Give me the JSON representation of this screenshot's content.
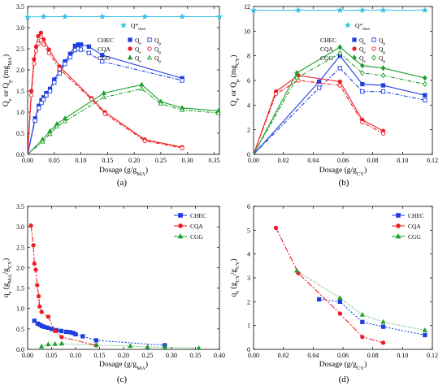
{
  "figure": {
    "panels": [
      "(a)",
      "(b)",
      "(c)",
      "(d)"
    ]
  },
  "chart_data": [
    {
      "id": "a",
      "type": "line",
      "caption": "(a)",
      "xlabel": "Dosage (g/g",
      "xlabel_sub": "MA",
      "xlabel_end": ")",
      "ylabel": "Q",
      "ylabel_parts": [
        "Q",
        "e",
        " or Q",
        "p",
        " (mg",
        "MA",
        ")"
      ],
      "xlim": [
        0,
        0.36
      ],
      "ylim": [
        0,
        3.5
      ],
      "xticks": [
        0,
        0.05,
        0.1,
        0.15,
        0.2,
        0.25,
        0.3,
        0.35
      ],
      "xtick_labels": [
        "0.00",
        "0.05",
        "0.10",
        "0.15",
        "0.20",
        "0.25",
        "0.30",
        "0.35"
      ],
      "yticks": [
        0,
        0.5,
        1.0,
        1.5,
        2.0,
        2.5,
        3.0,
        3.5
      ],
      "ytick_labels": [
        "0.0",
        "0.5",
        "1.0",
        "1.5",
        "2.0",
        "2.5",
        "3.0",
        "3.5"
      ],
      "qmax_label": "Q*",
      "qmax_sub": "max",
      "qmax": {
        "color": "#35c2e6",
        "x": [
          0,
          0.03,
          0.07,
          0.14,
          0.22,
          0.29,
          0.36
        ],
        "y": [
          3.25,
          3.26,
          3.26,
          3.26,
          3.26,
          3.26,
          3.26
        ]
      },
      "legend": [
        {
          "group": "CHEC",
          "qe": "Q",
          "qe_sub": "e",
          "qp": "Q",
          "qp_sub": "p",
          "color": "#1f3ee0",
          "marker": "square"
        },
        {
          "group": "CQA",
          "qe": "Q",
          "qe_sub": "e",
          "qp": "Q",
          "qp_sub": "p",
          "color": "#ee1c24",
          "marker": "circle"
        },
        {
          "group": "CGG",
          "qe": "Q",
          "qe_sub": "e",
          "qp": "Q",
          "qp_sub": "p",
          "color": "#1d9e2b",
          "marker": "triangle"
        }
      ],
      "series": [
        {
          "name": "CHEC",
          "kind": "Qe",
          "color": "#1f3ee0",
          "marker": "square",
          "filled": true,
          "x": [
            0,
            0.014,
            0.021,
            0.026,
            0.03,
            0.035,
            0.042,
            0.05,
            0.06,
            0.07,
            0.08,
            0.089,
            0.095,
            0.1,
            0.115,
            0.14,
            0.29
          ],
          "y": [
            0,
            0.85,
            1.15,
            1.28,
            1.35,
            1.45,
            1.55,
            1.77,
            1.98,
            2.2,
            2.38,
            2.57,
            2.6,
            2.6,
            2.55,
            2.35,
            1.8
          ]
        },
        {
          "name": "CHEC",
          "kind": "Qp",
          "color": "#1f3ee0",
          "marker": "square",
          "filled": false,
          "x": [
            0,
            0.014,
            0.021,
            0.026,
            0.03,
            0.035,
            0.042,
            0.05,
            0.06,
            0.07,
            0.08,
            0.089,
            0.095,
            0.1,
            0.115,
            0.14,
            0.29
          ],
          "y": [
            0,
            0.8,
            1.1,
            1.22,
            1.3,
            1.4,
            1.5,
            1.7,
            1.92,
            2.14,
            2.3,
            2.47,
            2.5,
            2.48,
            2.4,
            2.2,
            1.75
          ]
        },
        {
          "name": "CQA",
          "kind": "Qe",
          "color": "#ee1c24",
          "marker": "circle",
          "filled": true,
          "x": [
            0,
            0.007,
            0.012,
            0.016,
            0.02,
            0.025,
            0.03,
            0.04,
            0.06,
            0.12,
            0.145,
            0.22,
            0.29
          ],
          "y": [
            0,
            1.5,
            2.25,
            2.55,
            2.8,
            2.88,
            2.72,
            2.48,
            2.08,
            1.33,
            1.0,
            0.35,
            0.17
          ]
        },
        {
          "name": "CQA",
          "kind": "Qp",
          "color": "#ee1c24",
          "marker": "circle",
          "filled": false,
          "x": [
            0,
            0.007,
            0.012,
            0.016,
            0.02,
            0.025,
            0.03,
            0.04,
            0.06,
            0.12,
            0.145,
            0.22,
            0.29
          ],
          "y": [
            0,
            1.4,
            2.15,
            2.45,
            2.62,
            2.7,
            2.6,
            2.4,
            2.02,
            1.3,
            0.96,
            0.32,
            0.15
          ]
        },
        {
          "name": "CGG",
          "kind": "Qe",
          "color": "#1d9e2b",
          "marker": "triangle",
          "filled": true,
          "x": [
            0,
            0.028,
            0.042,
            0.055,
            0.07,
            0.143,
            0.214,
            0.25,
            0.29,
            0.358
          ],
          "y": [
            0,
            0.35,
            0.55,
            0.72,
            0.85,
            1.45,
            1.65,
            1.25,
            1.1,
            1.03
          ]
        },
        {
          "name": "CGG",
          "kind": "Qp",
          "color": "#1d9e2b",
          "marker": "triangle",
          "filled": false,
          "x": [
            0,
            0.028,
            0.042,
            0.055,
            0.07,
            0.143,
            0.214,
            0.25,
            0.29,
            0.358
          ],
          "y": [
            0,
            0.3,
            0.48,
            0.66,
            0.78,
            1.35,
            1.55,
            1.2,
            1.05,
            0.98
          ]
        }
      ]
    },
    {
      "id": "b",
      "type": "line",
      "caption": "(b)",
      "xlabel": "Dosage (g/g",
      "xlabel_sub": "CY",
      "xlabel_end": ")",
      "ylabel_parts": [
        "Q",
        "e",
        " or Q",
        "p",
        " (mg",
        "CY",
        ")"
      ],
      "xlim": [
        0,
        0.12
      ],
      "ylim": [
        0,
        12
      ],
      "xticks": [
        0,
        0.02,
        0.04,
        0.06,
        0.08,
        0.1,
        0.12
      ],
      "xtick_labels": [
        "0.00",
        "0.02",
        "0.04",
        "0.06",
        "0.08",
        "0.10",
        "0.12"
      ],
      "yticks": [
        0,
        2,
        4,
        6,
        8,
        10,
        12
      ],
      "ytick_labels": [
        "0",
        "2",
        "4",
        "6",
        "8",
        "10",
        "12"
      ],
      "qmax_label": "Q*",
      "qmax_sub": "max",
      "qmax": {
        "color": "#35c2e6",
        "x": [
          0,
          0.03,
          0.058,
          0.073,
          0.087,
          0.115
        ],
        "y": [
          11.7,
          11.7,
          11.7,
          11.7,
          11.7,
          11.7
        ]
      },
      "legend": [
        {
          "group": "CHEC",
          "qe": "Q",
          "qe_sub": "e",
          "qp": "Q",
          "qp_sub": "p",
          "color": "#1f3ee0",
          "marker": "square"
        },
        {
          "group": "CQA",
          "qe": "Q",
          "qe_sub": "e",
          "qp": "Q",
          "qp_sub": "p",
          "color": "#ee1c24",
          "marker": "circle"
        },
        {
          "group": "CGG",
          "qe": "Q",
          "qe_sub": "e",
          "qp": "Q",
          "qp_sub": "p",
          "color": "#1d9e2b",
          "marker": "diamond"
        }
      ],
      "series": [
        {
          "name": "CHEC",
          "kind": "Qe",
          "color": "#1f3ee0",
          "marker": "square",
          "filled": true,
          "x": [
            0,
            0.044,
            0.058,
            0.073,
            0.087,
            0.115
          ],
          "y": [
            0,
            5.9,
            8.0,
            5.7,
            5.6,
            4.8
          ]
        },
        {
          "name": "CHEC",
          "kind": "Qp",
          "color": "#1f3ee0",
          "marker": "square",
          "filled": false,
          "x": [
            0,
            0.044,
            0.058,
            0.073,
            0.087,
            0.115
          ],
          "y": [
            0,
            5.4,
            7.0,
            5.1,
            5.1,
            4.4
          ]
        },
        {
          "name": "CQA",
          "kind": "Qe",
          "color": "#ee1c24",
          "marker": "circle",
          "filled": true,
          "x": [
            0,
            0.015,
            0.03,
            0.058,
            0.073,
            0.087
          ],
          "y": [
            0,
            5.1,
            6.4,
            5.9,
            2.8,
            1.9
          ]
        },
        {
          "name": "CQA",
          "kind": "Qp",
          "color": "#ee1c24",
          "marker": "circle",
          "filled": false,
          "x": [
            0,
            0.015,
            0.03,
            0.058,
            0.073,
            0.087
          ],
          "y": [
            0,
            4.9,
            6.0,
            5.6,
            2.6,
            1.7
          ]
        },
        {
          "name": "CGG",
          "kind": "Qe",
          "color": "#1d9e2b",
          "marker": "diamond",
          "filled": true,
          "x": [
            0,
            0.029,
            0.058,
            0.073,
            0.087,
            0.115
          ],
          "y": [
            0,
            6.6,
            8.7,
            7.2,
            7.0,
            6.2
          ]
        },
        {
          "name": "CGG",
          "kind": "Qp",
          "color": "#1d9e2b",
          "marker": "diamond",
          "filled": false,
          "x": [
            0,
            0.029,
            0.058,
            0.073,
            0.087,
            0.115
          ],
          "y": [
            0,
            6.2,
            8.2,
            6.6,
            6.4,
            5.7
          ]
        }
      ]
    },
    {
      "id": "c",
      "type": "scatter",
      "caption": "(c)",
      "xlabel": "Dosage (g/g",
      "xlabel_sub": "MA",
      "xlabel_end": ")",
      "ylabel_parts": [
        "q",
        "e",
        " (g",
        "MA",
        "/g",
        "CY",
        ")"
      ],
      "xlim": [
        0,
        0.4
      ],
      "ylim": [
        0,
        3.5
      ],
      "xticks": [
        0,
        0.05,
        0.1,
        0.15,
        0.2,
        0.25,
        0.3,
        0.35,
        0.4
      ],
      "xtick_labels": [
        "0.00",
        "0.05",
        "0.10",
        "0.15",
        "0.20",
        "0.25",
        "0.30",
        "0.35",
        "0.40"
      ],
      "yticks": [
        0,
        0.5,
        1.0,
        1.5,
        2.0,
        2.5,
        3.0,
        3.5
      ],
      "ytick_labels": [
        "0.0",
        "0.5",
        "1.0",
        "1.5",
        "2.0",
        "2.5",
        "3.0",
        "3.5"
      ],
      "legend": [
        {
          "group": "CHEC",
          "color": "#1f3ee0",
          "marker": "square"
        },
        {
          "group": "CQA",
          "color": "#ee1c24",
          "marker": "circle"
        },
        {
          "group": "CGG",
          "color": "#1d9e2b",
          "marker": "triangle"
        }
      ],
      "series": [
        {
          "name": "CHEC",
          "color": "#1f3ee0",
          "marker": "square",
          "dash": "2,2",
          "x": [
            0.014,
            0.021,
            0.026,
            0.03,
            0.035,
            0.042,
            0.05,
            0.06,
            0.07,
            0.08,
            0.089,
            0.095,
            0.1,
            0.115,
            0.143,
            0.286
          ],
          "y": [
            0.7,
            0.63,
            0.6,
            0.57,
            0.55,
            0.53,
            0.5,
            0.47,
            0.45,
            0.43,
            0.42,
            0.4,
            0.37,
            0.32,
            0.22,
            0.1
          ]
        },
        {
          "name": "CQA",
          "color": "#ee1c24",
          "marker": "circle",
          "dash": "7,2,2,2",
          "x": [
            0.007,
            0.012,
            0.014,
            0.017,
            0.02,
            0.023,
            0.025,
            0.029,
            0.043,
            0.057,
            0.071,
            0.143
          ],
          "y": [
            3.03,
            2.55,
            2.1,
            1.95,
            1.57,
            1.3,
            1.05,
            0.92,
            0.8,
            0.45,
            0.3,
            0.1
          ]
        },
        {
          "name": "CGG",
          "color": "#1d9e2b",
          "marker": "triangle",
          "dash": "1,2",
          "x": [
            0.029,
            0.043,
            0.057,
            0.071,
            0.143,
            0.214,
            0.25,
            0.286,
            0.357
          ],
          "y": [
            0.07,
            0.12,
            0.13,
            0.14,
            0.1,
            0.08,
            0.06,
            0.05,
            0.03
          ]
        }
      ]
    },
    {
      "id": "d",
      "type": "scatter",
      "caption": "(d)",
      "xlabel": "Dosage (g/g",
      "xlabel_sub": "CY",
      "xlabel_end": ")",
      "ylabel_parts": [
        "q",
        "e",
        " (g",
        "CY",
        "/g",
        "CY",
        ")"
      ],
      "xlim": [
        0,
        0.12
      ],
      "ylim": [
        0,
        6
      ],
      "xticks": [
        0,
        0.02,
        0.04,
        0.06,
        0.08,
        0.1,
        0.12
      ],
      "xtick_labels": [
        "0.00",
        "0.02",
        "0.04",
        "0.06",
        "0.08",
        "0.10",
        "0.12"
      ],
      "yticks": [
        0,
        1,
        2,
        3,
        4,
        5,
        6
      ],
      "ytick_labels": [
        "0",
        "1",
        "2",
        "3",
        "4",
        "5",
        "6"
      ],
      "legend": [
        {
          "group": "CHEC",
          "color": "#1f3ee0",
          "marker": "square"
        },
        {
          "group": "CQA",
          "color": "#ee1c24",
          "marker": "circle"
        },
        {
          "group": "CGG",
          "color": "#1d9e2b",
          "marker": "triangle"
        }
      ],
      "series": [
        {
          "name": "CHEC",
          "color": "#1f3ee0",
          "marker": "square",
          "dash": "2,2",
          "x": [
            0.044,
            0.058,
            0.073,
            0.087,
            0.115
          ],
          "y": [
            2.1,
            2.0,
            1.15,
            0.95,
            0.6
          ]
        },
        {
          "name": "CQA",
          "color": "#ee1c24",
          "marker": "circle",
          "dash": "7,2,2,2",
          "x": [
            0.015,
            0.03,
            0.058,
            0.073,
            0.087
          ],
          "y": [
            5.1,
            3.2,
            1.5,
            0.52,
            0.28
          ]
        },
        {
          "name": "CGG",
          "color": "#1d9e2b",
          "marker": "triangle",
          "dash": "1,2",
          "x": [
            0.029,
            0.058,
            0.073,
            0.087,
            0.115
          ],
          "y": [
            3.3,
            2.15,
            1.45,
            1.15,
            0.8
          ]
        }
      ]
    }
  ]
}
